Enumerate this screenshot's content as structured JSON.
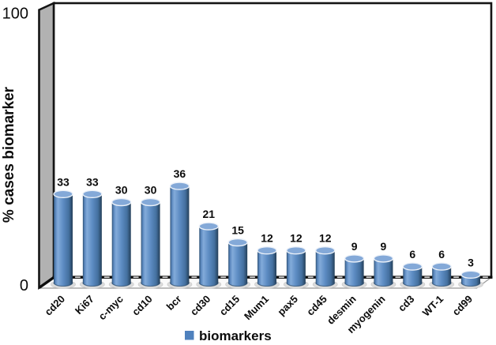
{
  "chart_data": {
    "type": "bar",
    "subtype": "3d-cylinder",
    "title": "",
    "categories": [
      "cd20",
      "Ki67",
      "c-myc",
      "cd10",
      "bcr",
      "cd30",
      "cd15",
      "Mum1",
      "pax5",
      "cd45",
      "desmin",
      "myogenin",
      "cd3",
      "WT-1",
      "cd99"
    ],
    "series": [
      {
        "name": "biomarkers",
        "values": [
          33,
          33,
          30,
          30,
          36,
          21,
          15,
          12,
          12,
          12,
          9,
          9,
          6,
          6,
          3
        ]
      }
    ],
    "xlabel": "",
    "ylabel": "% cases biomarker",
    "ylim": [
      0,
      100
    ],
    "yticks": [
      0,
      100
    ],
    "grid": false,
    "data_labels_shown": true,
    "legend": {
      "position": "bottom",
      "label": "biomarkers",
      "swatch_color": "#4f81bd"
    },
    "colors": {
      "bar": "#4f81bd",
      "bar_top": "#84a9d8",
      "wall": "#b2b2b2",
      "axis": "#0d0d0d",
      "floor": "#fafafa"
    }
  }
}
